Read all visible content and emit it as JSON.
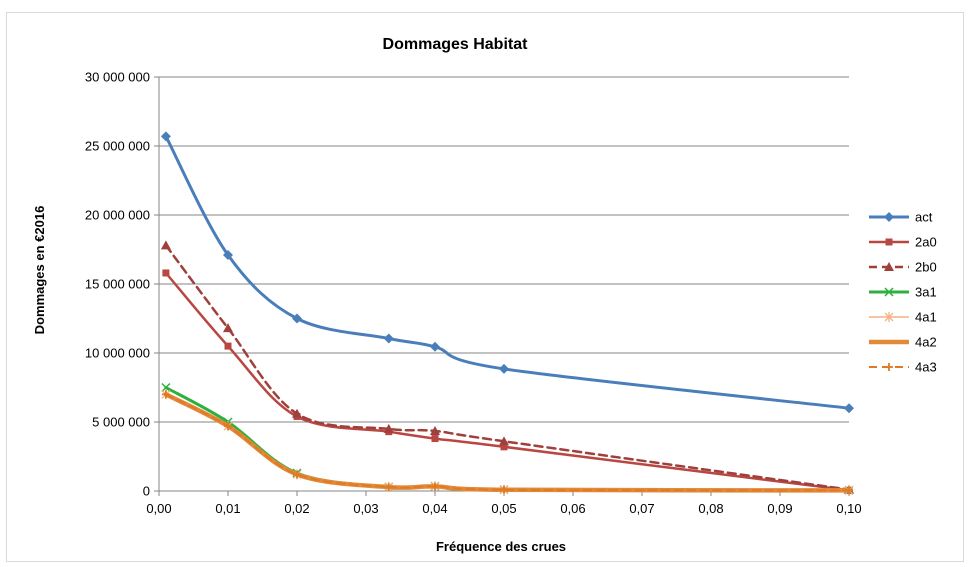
{
  "chart_data": {
    "type": "line",
    "title": "Dommages Habitat",
    "xlabel": "Fréquence des crues",
    "ylabel": "Dommages en €2016",
    "xlim": [
      0,
      0.1
    ],
    "ylim": [
      0,
      30000000
    ],
    "x_ticks": [
      "0,00",
      "0,01",
      "0,02",
      "0,03",
      "0,04",
      "0,05",
      "0,06",
      "0,07",
      "0,08",
      "0,09",
      "0,10"
    ],
    "y_ticks": [
      "0",
      "5 000 000",
      "10 000 000",
      "15 000 000",
      "20 000 000",
      "25 000 000",
      "30 000 000"
    ],
    "grid": "horizontal",
    "legend_position": "right",
    "x": [
      0.001,
      0.01,
      0.02,
      0.0333,
      0.04,
      0.05,
      0.1
    ],
    "series": [
      {
        "name": "act",
        "color": "#4a7ebb",
        "marker": "diamond",
        "dash": "solid",
        "width": 3,
        "values": [
          25700000,
          17100000,
          12500000,
          11050000,
          10450000,
          8850000,
          6000000
        ]
      },
      {
        "name": "2a0",
        "color": "#b84742",
        "marker": "square",
        "dash": "solid",
        "width": 2.5,
        "values": [
          15800000,
          10500000,
          5400000,
          4300000,
          3800000,
          3200000,
          50000
        ]
      },
      {
        "name": "2b0",
        "color": "#a0403c",
        "marker": "triangle",
        "dash": "dashed",
        "width": 2.5,
        "values": [
          17800000,
          11800000,
          5600000,
          4500000,
          4350000,
          3600000,
          100000
        ]
      },
      {
        "name": "3a1",
        "color": "#2eb03f",
        "marker": "x",
        "dash": "solid",
        "width": 3,
        "values": [
          7500000,
          5000000,
          1300000,
          300000,
          350000,
          100000,
          50000
        ]
      },
      {
        "name": "4a1",
        "color": "#f4b183",
        "marker": "star",
        "dash": "solid",
        "width": 1.5,
        "values": [
          7000000,
          4700000,
          1200000,
          300000,
          350000,
          100000,
          50000
        ]
      },
      {
        "name": "4a2",
        "color": "#e3893a",
        "marker": "none",
        "dash": "solid",
        "width": 4.5,
        "values": [
          7000000,
          4700000,
          1200000,
          280000,
          330000,
          90000,
          40000
        ]
      },
      {
        "name": "4a3",
        "color": "#e07a20",
        "marker": "plus",
        "dash": "dashed",
        "width": 2,
        "values": [
          7000000,
          4700000,
          1200000,
          280000,
          330000,
          90000,
          40000
        ]
      }
    ]
  }
}
